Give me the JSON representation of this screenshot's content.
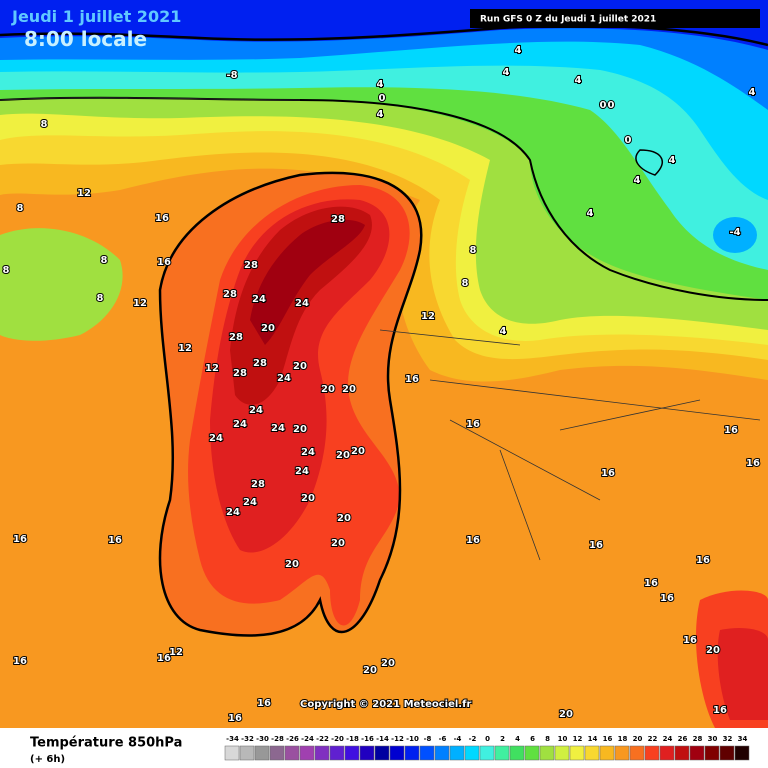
{
  "header": {
    "date": "Jeudi 1 juillet 2021",
    "time": "8:00 locale",
    "run": "Run GFS 0 Z du Jeudi 1 juillet 2021"
  },
  "map": {
    "labels": [
      -8,
      4,
      0,
      4,
      4,
      4,
      4,
      0,
      0,
      0,
      4,
      4,
      4,
      -4,
      4,
      8,
      12,
      8,
      16,
      16,
      8,
      8,
      8,
      12,
      12,
      12,
      8,
      8,
      4,
      12,
      28,
      28,
      28,
      24,
      24,
      20,
      28,
      28,
      28,
      24,
      20,
      20,
      20,
      16,
      20,
      16,
      16,
      16,
      16,
      24,
      24,
      24,
      20,
      24,
      24,
      20,
      24,
      28,
      20,
      20,
      20,
      24,
      24,
      20,
      16,
      16,
      16,
      16,
      16,
      16,
      16,
      20,
      16,
      16,
      12,
      16,
      16,
      16,
      20,
      20,
      20,
      16
    ]
  },
  "footer": {
    "copyright": "Copyright © 2021 Meteociel.fr",
    "variable": "Température 850hPa",
    "lead": "(+ 6h)",
    "scale": [
      {
        "value": -34,
        "color": "#d8d8d8"
      },
      {
        "value": -32,
        "color": "#b8b8b8"
      },
      {
        "value": -30,
        "color": "#989898"
      },
      {
        "value": -28,
        "color": "#8c6890"
      },
      {
        "value": -26,
        "color": "#9a50a0"
      },
      {
        "value": -24,
        "color": "#a040b0"
      },
      {
        "value": -22,
        "color": "#8030c0"
      },
      {
        "value": -20,
        "color": "#6020d0"
      },
      {
        "value": -18,
        "color": "#4010e0"
      },
      {
        "value": -16,
        "color": "#2000c0"
      },
      {
        "value": -14,
        "color": "#0000a0"
      },
      {
        "value": -12,
        "color": "#0000d0"
      },
      {
        "value": -10,
        "color": "#0020f0"
      },
      {
        "value": -8,
        "color": "#0050ff"
      },
      {
        "value": -6,
        "color": "#0080ff"
      },
      {
        "value": -4,
        "color": "#00b0ff"
      },
      {
        "value": -2,
        "color": "#00d8ff"
      },
      {
        "value": 0,
        "color": "#40f0e0"
      },
      {
        "value": 2,
        "color": "#40f0a0"
      },
      {
        "value": 4,
        "color": "#40e060"
      },
      {
        "value": 6,
        "color": "#60e040"
      },
      {
        "value": 8,
        "color": "#a0e040"
      },
      {
        "value": 10,
        "color": "#d0f040"
      },
      {
        "value": 12,
        "color": "#f0f040"
      },
      {
        "value": 14,
        "color": "#f8d830"
      },
      {
        "value": 16,
        "color": "#f8b820"
      },
      {
        "value": 18,
        "color": "#f89820"
      },
      {
        "value": 20,
        "color": "#f87020"
      },
      {
        "value": 22,
        "color": "#f84020"
      },
      {
        "value": 24,
        "color": "#e02020"
      },
      {
        "value": 26,
        "color": "#c01010"
      },
      {
        "value": 28,
        "color": "#a00010"
      },
      {
        "value": 30,
        "color": "#800000"
      },
      {
        "value": 32,
        "color": "#600000"
      },
      {
        "value": 34,
        "color": "#200000"
      }
    ]
  }
}
